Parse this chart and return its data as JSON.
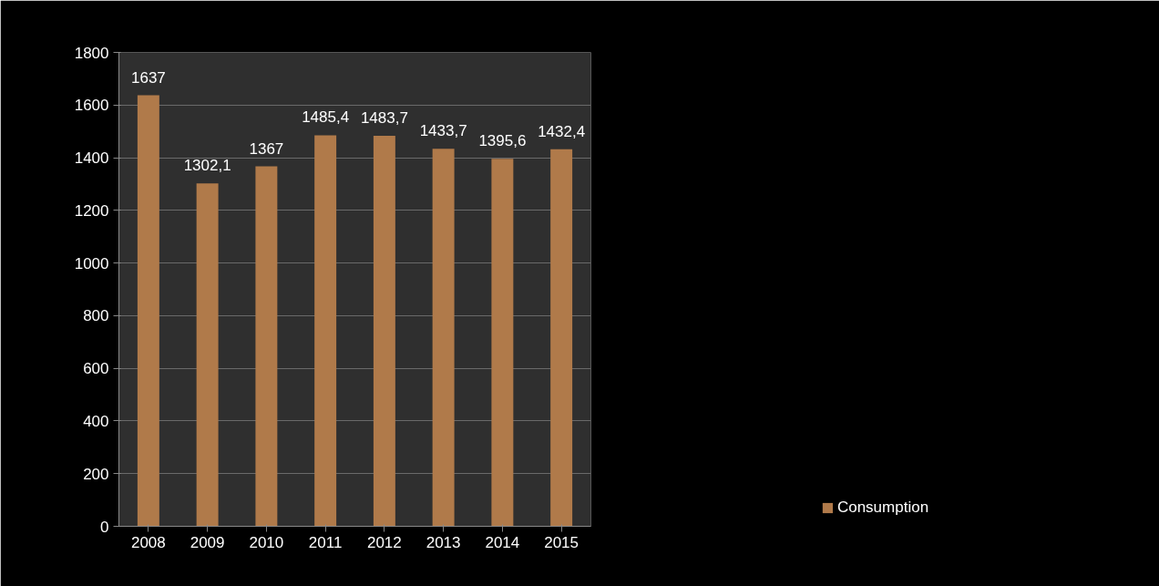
{
  "chart_data": {
    "type": "bar",
    "categories": [
      "2008",
      "2009",
      "2010",
      "2011",
      "2012",
      "2013",
      "2014",
      "2015"
    ],
    "series": [
      {
        "name": "Consumption",
        "color": "#b07a4a",
        "values": [
          1637,
          1302.1,
          1367,
          1485.4,
          1483.7,
          1433.7,
          1395.6,
          1432.4
        ],
        "value_labels": [
          "1637",
          "1302,1",
          "1367",
          "1485,4",
          "1483,7",
          "1433,7",
          "1395,6",
          "1432,4"
        ]
      }
    ],
    "ylim": [
      0,
      1800
    ],
    "yticks": [
      0,
      200,
      400,
      600,
      800,
      1000,
      1200,
      1400,
      1600,
      1800
    ],
    "grid": "y",
    "legend": "bottom right"
  }
}
